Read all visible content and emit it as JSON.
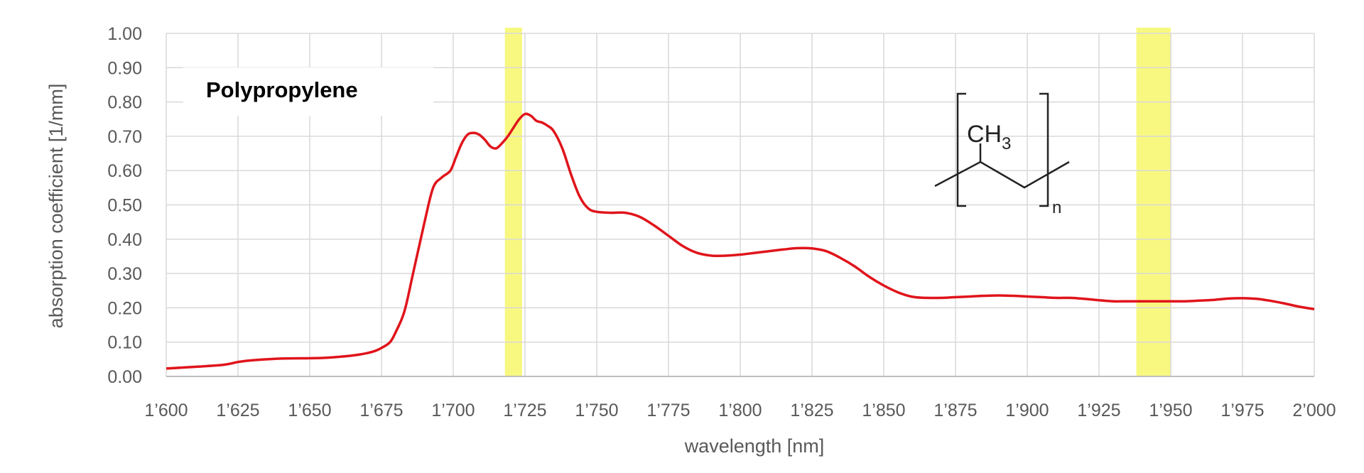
{
  "chart_data": {
    "type": "line",
    "title": "",
    "annotation": "Polypropylene",
    "xlabel": "wavelength  [nm]",
    "ylabel": "absorption coefficient [1/mm]",
    "xlim": [
      1600,
      2000
    ],
    "ylim": [
      0,
      1.0
    ],
    "grid": true,
    "x_ticks": [
      1600,
      1625,
      1650,
      1675,
      1700,
      1725,
      1750,
      1775,
      1800,
      1825,
      1850,
      1875,
      1900,
      1925,
      1950,
      1975,
      2000
    ],
    "x_tick_labels": [
      "1’600",
      "1’625",
      "1’650",
      "1’675",
      "1’700",
      "1’725",
      "1’750",
      "1’775",
      "1’800",
      "1’825",
      "1’850",
      "1’875",
      "1’900",
      "1’925",
      "1’950",
      "1’975",
      "2’000"
    ],
    "y_ticks": [
      0,
      0.1,
      0.2,
      0.3,
      0.4,
      0.5,
      0.6,
      0.7,
      0.8,
      0.9,
      1.0
    ],
    "y_tick_labels": [
      "0.00",
      "0.10",
      "0.20",
      "0.30",
      "0.40",
      "0.50",
      "0.60",
      "0.70",
      "0.80",
      "0.90",
      "1.00"
    ],
    "highlight_bands": [
      {
        "x0": 1718,
        "x1": 1724,
        "color": "#f7f76a"
      },
      {
        "x0": 1938,
        "x1": 1950,
        "color": "#f7f76a"
      }
    ],
    "series": [
      {
        "color": "#e0141b",
        "x": [
          1600,
          1610,
          1620,
          1625,
          1630,
          1640,
          1650,
          1655,
          1660,
          1665,
          1670,
          1673,
          1675,
          1678,
          1680,
          1683,
          1686,
          1690,
          1693,
          1696,
          1699,
          1701,
          1703,
          1705,
          1707,
          1709,
          1711,
          1713,
          1715,
          1717,
          1719,
          1721,
          1723,
          1725,
          1727,
          1729,
          1731,
          1733,
          1735,
          1738,
          1741,
          1744,
          1747,
          1750,
          1755,
          1760,
          1765,
          1770,
          1775,
          1780,
          1785,
          1790,
          1795,
          1800,
          1805,
          1810,
          1815,
          1820,
          1825,
          1830,
          1835,
          1840,
          1845,
          1850,
          1855,
          1860,
          1865,
          1870,
          1875,
          1880,
          1885,
          1890,
          1895,
          1900,
          1905,
          1910,
          1915,
          1920,
          1925,
          1930,
          1935,
          1940,
          1945,
          1950,
          1955,
          1960,
          1965,
          1970,
          1975,
          1980,
          1985,
          1990,
          1995,
          2000
        ],
        "y": [
          0.023,
          0.028,
          0.034,
          0.042,
          0.047,
          0.052,
          0.053,
          0.054,
          0.057,
          0.061,
          0.068,
          0.075,
          0.083,
          0.1,
          0.13,
          0.19,
          0.3,
          0.45,
          0.55,
          0.58,
          0.6,
          0.64,
          0.68,
          0.705,
          0.71,
          0.705,
          0.69,
          0.67,
          0.665,
          0.68,
          0.7,
          0.725,
          0.75,
          0.765,
          0.76,
          0.745,
          0.74,
          0.73,
          0.715,
          0.665,
          0.59,
          0.525,
          0.49,
          0.48,
          0.477,
          0.477,
          0.465,
          0.44,
          0.41,
          0.38,
          0.36,
          0.352,
          0.352,
          0.355,
          0.36,
          0.365,
          0.37,
          0.374,
          0.373,
          0.365,
          0.345,
          0.32,
          0.29,
          0.265,
          0.245,
          0.232,
          0.229,
          0.229,
          0.231,
          0.233,
          0.235,
          0.236,
          0.235,
          0.233,
          0.231,
          0.229,
          0.229,
          0.226,
          0.222,
          0.219,
          0.219,
          0.219,
          0.219,
          0.219,
          0.219,
          0.221,
          0.223,
          0.227,
          0.228,
          0.226,
          0.22,
          0.212,
          0.203,
          0.196
        ]
      }
    ],
    "inset": {
      "group": "CH",
      "subscript": "3",
      "repeat": "n"
    }
  }
}
